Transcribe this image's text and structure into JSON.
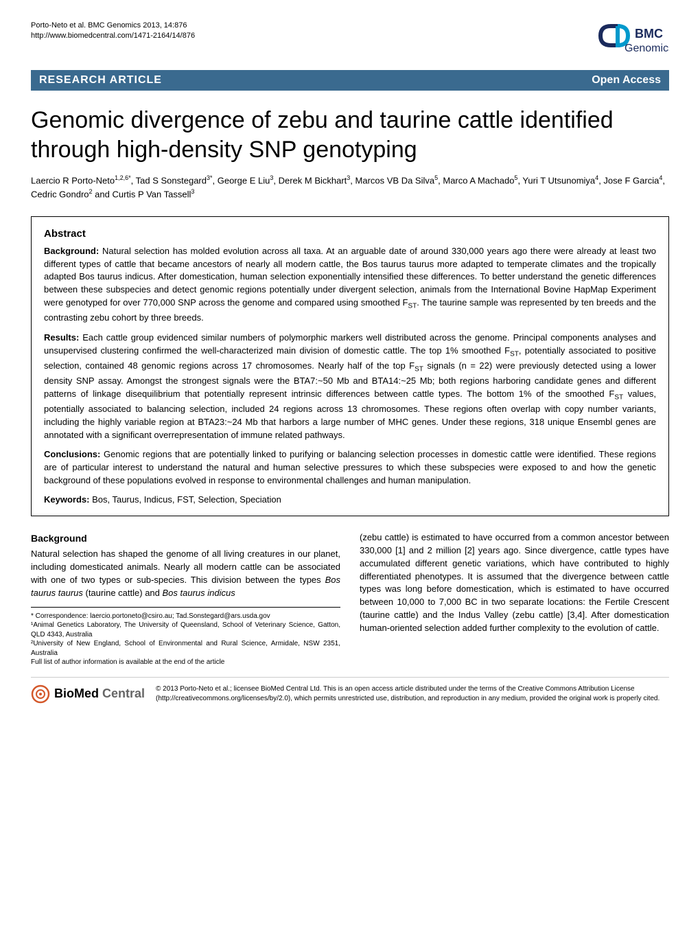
{
  "header": {
    "citation_line1": "Porto-Neto et al. BMC Genomics 2013, 14:876",
    "citation_line2": "http://www.biomedcentral.com/1471-2164/14/876",
    "logo_text_top": "BMC",
    "logo_text_bottom": "Genomics",
    "logo_colors": {
      "navy": "#1a2a5c",
      "cyan": "#0099cc"
    }
  },
  "banner": {
    "left": "RESEARCH ARTICLE",
    "right": "Open Access",
    "background": "#3a6a8f"
  },
  "title": "Genomic divergence of zebu and taurine cattle identified through high-density SNP genotyping",
  "authors_html": "Laercio R Porto-Neto<sup>1,2,6*</sup>, Tad S Sonstegard<sup>3*</sup>, George E Liu<sup>3</sup>, Derek M Bickhart<sup>3</sup>, Marcos VB Da Silva<sup>5</sup>, Marco A Machado<sup>5</sup>, Yuri T Utsunomiya<sup>4</sup>, Jose F Garcia<sup>4</sup>, Cedric Gondro<sup>2</sup> and Curtis P Van Tassell<sup>3</sup>",
  "abstract": {
    "heading": "Abstract",
    "background": {
      "label": "Background:",
      "text": " Natural selection has molded evolution across all taxa. At an arguable date of around 330,000 years ago there were already at least two different types of cattle that became ancestors of nearly all modern cattle, the Bos taurus taurus more adapted to temperate climates and the tropically adapted Bos taurus indicus. After domestication, human selection exponentially intensified these differences. To better understand the genetic differences between these subspecies and detect genomic regions potentially under divergent selection, animals from the International Bovine HapMap Experiment were genotyped for over 770,000 SNP across the genome and compared using smoothed F<sub>ST</sub>. The taurine sample was represented by ten breeds and the contrasting zebu cohort by three breeds."
    },
    "results": {
      "label": "Results:",
      "text": " Each cattle group evidenced similar numbers of polymorphic markers well distributed across the genome. Principal components analyses and unsupervised clustering confirmed the well-characterized main division of domestic cattle. The top 1% smoothed F<sub>ST</sub>, potentially associated to positive selection, contained 48 genomic regions across 17 chromosomes. Nearly half of the top F<sub>ST</sub> signals (n = 22) were previously detected using a lower density SNP assay. Amongst the strongest signals were the BTA7:~50 Mb and BTA14:~25 Mb; both regions harboring candidate genes and different patterns of linkage disequilibrium that potentially represent intrinsic differences between cattle types. The bottom 1% of the smoothed F<sub>ST</sub> values, potentially associated to balancing selection, included 24 regions across 13 chromosomes. These regions often overlap with copy number variants, including the highly variable region at BTA23:~24 Mb that harbors a large number of MHC genes. Under these regions, 318 unique Ensembl genes are annotated with a significant overrepresentation of immune related pathways."
    },
    "conclusions": {
      "label": "Conclusions:",
      "text": " Genomic regions that are potentially linked to purifying or balancing selection processes in domestic cattle were identified. These regions are of particular interest to understand the natural and human selective pressures to which these subspecies were exposed to and how the genetic background of these populations evolved in response to environmental challenges and human manipulation."
    },
    "keywords": {
      "label": "Keywords:",
      "text": " Bos, Taurus, Indicus, FST, Selection, Speciation"
    }
  },
  "body": {
    "section_heading": "Background",
    "col1": "Natural selection has shaped the genome of all living creatures in our planet, including domesticated animals. Nearly all modern cattle can be associated with one of two types or sub-species. This division between the types Bos taurus taurus (taurine cattle) and Bos taurus indicus",
    "col2": "(zebu cattle) is estimated to have occurred from a common ancestor between 330,000 [1] and 2 million [2] years ago. Since divergence, cattle types have accumulated different genetic variations, which have contributed to highly differentiated phenotypes. It is assumed that the divergence between cattle types was long before domestication, which is estimated to have occurred between 10,000 to 7,000 BC in two separate locations: the Fertile Crescent (taurine cattle) and the Indus Valley (zebu cattle) [3,4]. After domestication human-oriented selection added further complexity to the evolution of cattle."
  },
  "footnotes": {
    "line1": "* Correspondence: laercio.portoneto@csiro.au; Tad.Sonstegard@ars.usda.gov",
    "line2": "¹Animal Genetics Laboratory, The University of Queensland, School of Veterinary Science, Gatton, QLD 4343, Australia",
    "line3": "²University of New England, School of Environmental and Rural Science, Armidale, NSW 2351, Australia",
    "line4": "Full list of author information is available at the end of the article"
  },
  "footer": {
    "bmc_logo_text": "BioMed Central",
    "bmc_logo_color": "#d4582a",
    "license": "© 2013 Porto-Neto et al.; licensee BioMed Central Ltd. This is an open access article distributed under the terms of the Creative Commons Attribution License (http://creativecommons.org/licenses/by/2.0), which permits unrestricted use, distribution, and reproduction in any medium, provided the original work is properly cited."
  }
}
